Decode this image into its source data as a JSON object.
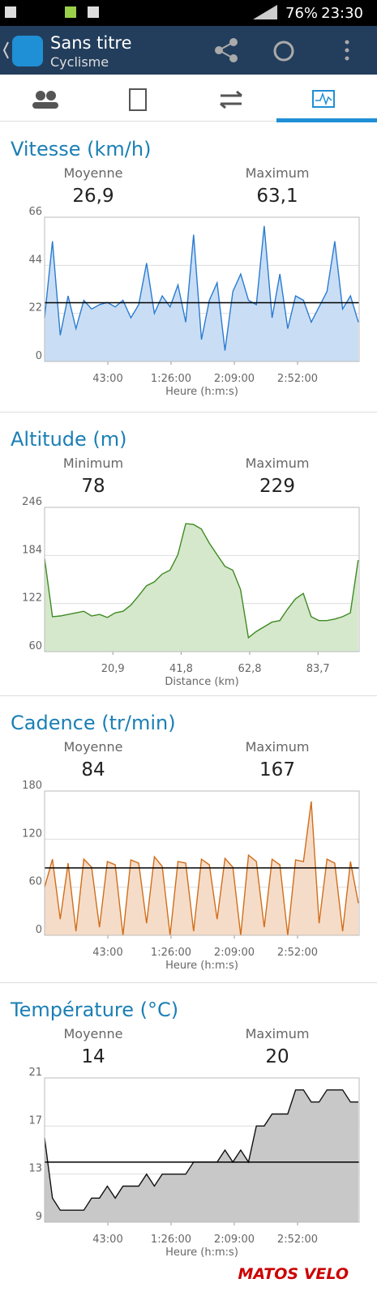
{
  "status_bar": {
    "battery": "76%",
    "time": "23:30"
  },
  "app_bar": {
    "title": "Sans titre",
    "subtitle": "Cyclisme"
  },
  "watermark": "MATOS VELO",
  "chart_data": [
    {
      "type": "line",
      "title": "Vitesse (km/h)",
      "stats": [
        {
          "name": "Moyenne",
          "value": 26.9,
          "label": "26,9"
        },
        {
          "name": "Maximum",
          "value": 63.1,
          "label": "63,1"
        }
      ],
      "mean_line": true,
      "color": "#2a7bd0",
      "fill_color": "#c9def5",
      "xlabel": "Heure (h:m:s)",
      "xlim": [
        0,
        12834
      ],
      "xticks": [
        {
          "value": 2580,
          "label": "43:00"
        },
        {
          "value": 5160,
          "label": "1:26:00"
        },
        {
          "value": 7740,
          "label": "2:09:00"
        },
        {
          "value": 10320,
          "label": "2:52:00"
        }
      ],
      "ylim": [
        0,
        66
      ],
      "yticks": [
        0,
        22,
        44,
        66
      ],
      "grid": true,
      "x": [
        0,
        320,
        640,
        960,
        1280,
        1600,
        1920,
        2240,
        2560,
        2880,
        3200,
        3520,
        3840,
        4160,
        4480,
        4800,
        5120,
        5440,
        5760,
        6080,
        6400,
        6720,
        7040,
        7360,
        7680,
        8000,
        8320,
        8640,
        8960,
        9280,
        9600,
        9920,
        10240,
        10560,
        10880,
        11200,
        11520,
        11840,
        12160,
        12480,
        12800
      ],
      "values": [
        20,
        55,
        12,
        30,
        15,
        28,
        24,
        26,
        27,
        25,
        28,
        20,
        26,
        45,
        22,
        30,
        25,
        35,
        18,
        58,
        10,
        28,
        36,
        5,
        32,
        40,
        28,
        26,
        62,
        20,
        40,
        15,
        30,
        28,
        18,
        25,
        32,
        55,
        24,
        30,
        18
      ]
    },
    {
      "type": "line",
      "title": "Altitude (m)",
      "stats": [
        {
          "name": "Minimum",
          "value": 78
        },
        {
          "name": "Maximum",
          "value": 229
        }
      ],
      "mean_line": false,
      "color": "#3f8a22",
      "fill_color": "#d5e8cc",
      "xlabel": "Distance (km)",
      "xlim": [
        0,
        96.3
      ],
      "xticks": [
        {
          "value": 20.9,
          "label": "20,9"
        },
        {
          "value": 41.8,
          "label": "41,8"
        },
        {
          "value": 62.8,
          "label": "62,8"
        },
        {
          "value": 83.7,
          "label": "83,7"
        }
      ],
      "ylim": [
        60,
        246
      ],
      "yticks": [
        60,
        122,
        184,
        246
      ],
      "grid": true,
      "x": [
        0,
        2.4,
        4.8,
        7.2,
        9.6,
        12,
        14.4,
        16.8,
        19.2,
        21.6,
        24,
        26.4,
        28.8,
        31.2,
        33.6,
        36,
        38.4,
        40.8,
        43.2,
        45.6,
        48,
        50.4,
        52.8,
        55.2,
        57.6,
        60,
        62.4,
        64.8,
        67.2,
        69.6,
        72,
        74.4,
        76.8,
        79.2,
        81.6,
        84,
        86.4,
        88.8,
        91.2,
        93.6,
        96
      ],
      "values": [
        180,
        105,
        106,
        108,
        110,
        112,
        106,
        108,
        104,
        110,
        112,
        120,
        132,
        145,
        150,
        160,
        165,
        185,
        225,
        224,
        218,
        200,
        185,
        170,
        165,
        140,
        78,
        86,
        92,
        98,
        100,
        115,
        128,
        135,
        105,
        100,
        100,
        102,
        105,
        110,
        178
      ]
    },
    {
      "type": "line",
      "title": "Cadence (tr/min)",
      "stats": [
        {
          "name": "Moyenne",
          "value": 84
        },
        {
          "name": "Maximum",
          "value": 167
        }
      ],
      "mean_line": true,
      "color": "#d06e1a",
      "fill_color": "#f5dcc8",
      "xlabel": "Heure (h:m:s)",
      "xlim": [
        0,
        12834
      ],
      "xticks": [
        {
          "value": 2580,
          "label": "43:00"
        },
        {
          "value": 5160,
          "label": "1:26:00"
        },
        {
          "value": 7740,
          "label": "2:09:00"
        },
        {
          "value": 10320,
          "label": "2:52:00"
        }
      ],
      "ylim": [
        0,
        180
      ],
      "yticks": [
        0,
        60,
        120,
        180
      ],
      "grid": true,
      "x": [
        0,
        320,
        640,
        960,
        1280,
        1600,
        1920,
        2240,
        2560,
        2880,
        3200,
        3520,
        3840,
        4160,
        4480,
        4800,
        5120,
        5440,
        5760,
        6080,
        6400,
        6720,
        7040,
        7360,
        7680,
        8000,
        8320,
        8640,
        8960,
        9280,
        9600,
        9920,
        10240,
        10560,
        10880,
        11200,
        11520,
        11840,
        12160,
        12480,
        12800
      ],
      "values": [
        60,
        95,
        20,
        90,
        5,
        95,
        85,
        10,
        92,
        88,
        0,
        94,
        90,
        15,
        98,
        86,
        0,
        92,
        90,
        5,
        95,
        88,
        20,
        96,
        85,
        0,
        100,
        92,
        10,
        95,
        88,
        0,
        94,
        92,
        167,
        15,
        95,
        90,
        5,
        92,
        40
      ]
    },
    {
      "type": "line",
      "title": "Température (°C)",
      "stats": [
        {
          "name": "Moyenne",
          "value": 14
        },
        {
          "name": "Maximum",
          "value": 20
        }
      ],
      "mean_line": true,
      "color": "#111111",
      "fill_color": "#c8c8c8",
      "xlabel": "Heure (h:m:s)",
      "xlim": [
        0,
        12834
      ],
      "xticks": [
        {
          "value": 2580,
          "label": "43:00"
        },
        {
          "value": 5160,
          "label": "1:26:00"
        },
        {
          "value": 7740,
          "label": "2:09:00"
        },
        {
          "value": 10320,
          "label": "2:52:00"
        }
      ],
      "ylim": [
        9,
        21
      ],
      "yticks": [
        9,
        13,
        17,
        21
      ],
      "grid": true,
      "x": [
        0,
        320,
        640,
        960,
        1280,
        1600,
        1920,
        2240,
        2560,
        2880,
        3200,
        3520,
        3840,
        4160,
        4480,
        4800,
        5120,
        5440,
        5760,
        6080,
        6400,
        6720,
        7040,
        7360,
        7680,
        8000,
        8320,
        8640,
        8960,
        9280,
        9600,
        9920,
        10240,
        10560,
        10880,
        11200,
        11520,
        11840,
        12160,
        12480,
        12800
      ],
      "values": [
        16,
        11,
        10,
        10,
        10,
        10,
        11,
        11,
        12,
        11,
        12,
        12,
        12,
        13,
        12,
        13,
        13,
        13,
        13,
        14,
        14,
        14,
        14,
        15,
        14,
        15,
        14,
        17,
        17,
        18,
        18,
        18,
        20,
        20,
        19,
        19,
        20,
        20,
        20,
        19,
        19
      ]
    }
  ]
}
